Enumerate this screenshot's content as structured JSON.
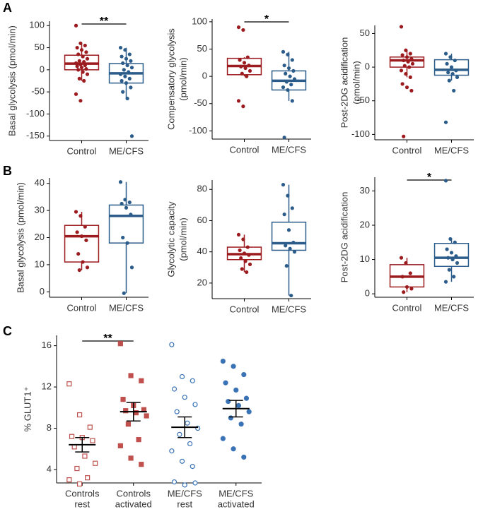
{
  "panel_labels": [
    "A",
    "B",
    "C"
  ],
  "chart_data": [
    {
      "type": "box",
      "ylabel": [
        "Basal glycolysis (pmol/min)"
      ],
      "categories": [
        "Control",
        "ME/CFS"
      ],
      "ylim": [
        -160,
        110
      ],
      "yticks": [
        -150,
        -100,
        -50,
        0,
        50,
        100
      ],
      "significance": "**",
      "groups": [
        {
          "color": "#9b1b1f",
          "q1": 0,
          "median": 14,
          "q3": 33,
          "whisker_low": -25,
          "whisker_high": 60,
          "points": [
            100,
            60,
            55,
            50,
            45,
            40,
            35,
            30,
            25,
            20,
            18,
            15,
            12,
            10,
            8,
            5,
            2,
            0,
            -5,
            -10,
            -20,
            -25,
            -55,
            -70
          ]
        },
        {
          "color": "#2b5c8a",
          "q1": -30,
          "median": -8,
          "q3": 14,
          "whisker_low": -65,
          "whisker_high": 50,
          "points": [
            50,
            45,
            35,
            30,
            25,
            20,
            15,
            10,
            5,
            0,
            -5,
            -10,
            -15,
            -20,
            -25,
            -30,
            -40,
            -50,
            -65,
            -150
          ]
        }
      ]
    },
    {
      "type": "box",
      "ylabel": [
        "Compensatory glycolysis",
        "(pmol/min)"
      ],
      "categories": [
        "Control",
        "ME/CFS"
      ],
      "ylim": [
        -115,
        105
      ],
      "yticks": [
        -100,
        -50,
        0,
        50,
        100
      ],
      "significance": "*",
      "groups": [
        {
          "color": "#9b1b1f",
          "q1": 3,
          "median": 19,
          "q3": 33,
          "whisker_low": 0,
          "whisker_high": 35,
          "points": [
            90,
            85,
            35,
            30,
            25,
            20,
            18,
            15,
            10,
            5,
            0,
            -45,
            -55
          ]
        },
        {
          "color": "#2b5c8a",
          "q1": -25,
          "median": -8,
          "q3": 10,
          "whisker_low": -45,
          "whisker_high": 45,
          "points": [
            45,
            40,
            30,
            20,
            15,
            10,
            5,
            0,
            -5,
            -10,
            -15,
            -20,
            -25,
            -45,
            -112
          ]
        }
      ]
    },
    {
      "type": "box",
      "ylabel": [
        "Post-2DG acidification",
        "(pmol/min)"
      ],
      "categories": [
        "Control",
        "ME/CFS"
      ],
      "ylim": [
        -108,
        62
      ],
      "yticks": [
        -100,
        -50,
        0,
        50
      ],
      "groups": [
        {
          "color": "#9b1b1f",
          "q1": 0,
          "median": 10,
          "q3": 15,
          "whisker_low": -15,
          "whisker_high": 25,
          "points": [
            60,
            25,
            20,
            18,
            15,
            12,
            10,
            8,
            5,
            2,
            0,
            -5,
            -10,
            -15,
            -25,
            -30,
            -35,
            -103
          ]
        },
        {
          "color": "#2b5c8a",
          "q1": -12,
          "median": -4,
          "q3": 11,
          "whisker_low": -20,
          "whisker_high": 20,
          "points": [
            20,
            15,
            10,
            5,
            0,
            -5,
            -8,
            -10,
            -15,
            -20,
            -35,
            -82
          ]
        }
      ]
    },
    {
      "type": "box",
      "ylabel": [
        "Basal glycolysis (pmol/min)"
      ],
      "categories": [
        "Control",
        "ME/CFS"
      ],
      "ylim": [
        -2,
        42
      ],
      "yticks": [
        0,
        10,
        20,
        30,
        40
      ],
      "groups": [
        {
          "color": "#9b1b1f",
          "q1": 11,
          "median": 20.5,
          "q3": 24.5,
          "whisker_low": 8,
          "whisker_high": 29.5,
          "points": [
            29.5,
            28,
            24,
            22,
            20.5,
            19,
            14,
            11,
            9,
            8
          ]
        },
        {
          "color": "#2b5c8a",
          "q1": 18,
          "median": 28,
          "q3": 32,
          "whisker_low": -0.5,
          "whisker_high": 40.5,
          "points": [
            40.5,
            34,
            33,
            32.5,
            31,
            28.5,
            20,
            18,
            9,
            -0.5
          ]
        }
      ]
    },
    {
      "type": "box",
      "ylabel": [
        "Glycolytic capacity",
        "(pmol/min)"
      ],
      "categories": [
        "Control",
        "ME/CFS"
      ],
      "ylim": [
        10,
        86
      ],
      "yticks": [
        20,
        40,
        60,
        80
      ],
      "groups": [
        {
          "color": "#9b1b1f",
          "q1": 35,
          "median": 38.5,
          "q3": 43,
          "whisker_low": 27,
          "whisker_high": 51,
          "points": [
            51,
            48,
            43,
            41,
            39,
            38,
            36,
            34,
            32,
            29,
            27
          ]
        },
        {
          "color": "#2b5c8a",
          "q1": 41,
          "median": 45.5,
          "q3": 59,
          "whisker_low": 12,
          "whisker_high": 83,
          "points": [
            83,
            76,
            68,
            64,
            54,
            46,
            44,
            42,
            40,
            31,
            12
          ]
        }
      ]
    },
    {
      "type": "box",
      "ylabel": [
        "Post-2DG acidification"
      ],
      "categories": [
        "Control",
        "ME/CFS"
      ],
      "ylim": [
        -1,
        34
      ],
      "yticks": [
        0,
        10,
        20,
        30
      ],
      "significance": "*",
      "groups": [
        {
          "color": "#9b1b1f",
          "q1": 2,
          "median": 5,
          "q3": 8.5,
          "whisker_low": 0.5,
          "whisker_high": 10.5,
          "points": [
            10.5,
            9,
            6,
            5,
            2,
            1.5,
            0.5
          ]
        },
        {
          "color": "#2b5c8a",
          "q1": 8,
          "median": 10.5,
          "q3": 14.7,
          "whisker_low": 3.5,
          "whisker_high": 16,
          "points": [
            33,
            16,
            15,
            13,
            12,
            11,
            10.5,
            10,
            9,
            7,
            5,
            3.5
          ]
        }
      ]
    },
    {
      "type": "dot",
      "ylabel": [
        "% GLUT1⁺"
      ],
      "categories": [
        [
          "Controls",
          "rest"
        ],
        [
          "Controls",
          "activated"
        ],
        [
          "ME/CFS",
          "rest"
        ],
        [
          "ME/CFS",
          "activated"
        ]
      ],
      "ylim": [
        2.7,
        17
      ],
      "yticks": [
        4,
        8,
        12,
        16
      ],
      "significance": "**",
      "groups": [
        {
          "color": "#c0504d",
          "marker": "square",
          "filled": false,
          "mean": 6.4,
          "error": 0.7,
          "points": [
            12.3,
            9.3,
            8.1,
            7.2,
            7.1,
            6.8,
            6.2,
            5.3,
            4.6,
            4.1,
            3.2,
            3.0,
            2.6
          ]
        },
        {
          "color": "#c0504d",
          "marker": "square",
          "filled": true,
          "mean": 9.6,
          "error": 0.9,
          "points": [
            16.2,
            13.1,
            12.6,
            10.8,
            10.2,
            9.8,
            9.7,
            9.5,
            9.2,
            8.4,
            6.9,
            6.3,
            5.1,
            4.5
          ]
        },
        {
          "color": "#3a73b5",
          "marker": "circle",
          "filled": false,
          "mean": 8.1,
          "error": 1.0,
          "points": [
            16.1,
            13.0,
            12.6,
            11.8,
            11.0,
            10.3,
            9.6,
            8.5,
            8.0,
            7.4,
            6.5,
            5.8,
            4.8,
            4.3,
            2.8,
            2.5,
            2.7
          ]
        },
        {
          "color": "#3a73b5",
          "marker": "circle",
          "filled": true,
          "mean": 9.9,
          "error": 0.8,
          "points": [
            14.5,
            14.0,
            13.2,
            12.4,
            11.7,
            10.9,
            10.6,
            10.2,
            9.6,
            9.0,
            8.4,
            7.0,
            6.0,
            5.2
          ]
        }
      ]
    }
  ]
}
